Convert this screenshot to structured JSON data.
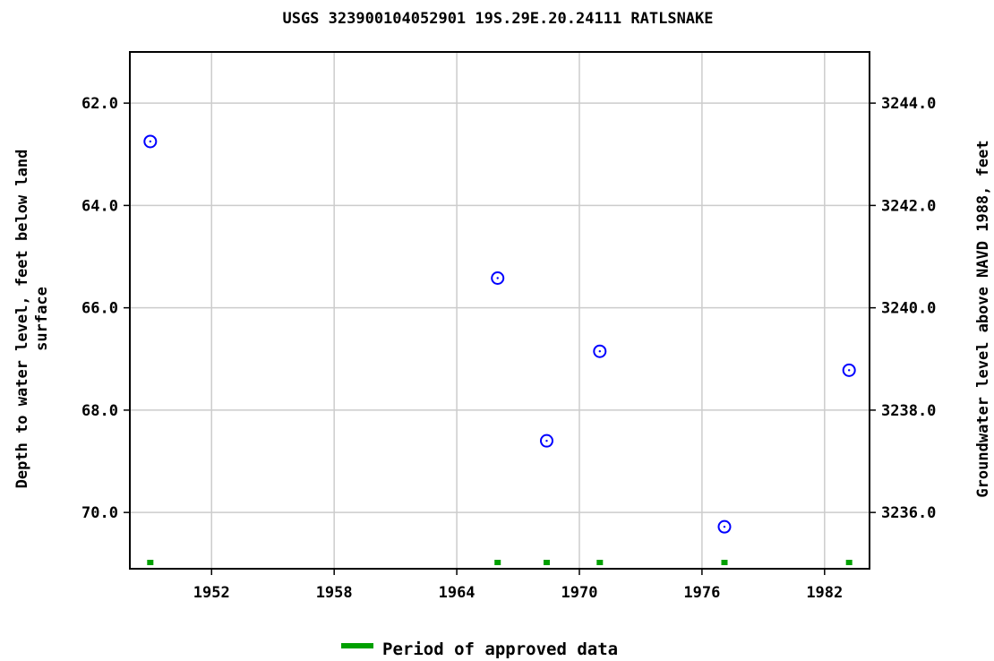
{
  "chart_data": {
    "type": "scatter",
    "title": "USGS 323900104052901 19S.29E.20.24111 RATLSNAKE",
    "ylabel_left": [
      "Depth to water level, feet below land",
      "surface"
    ],
    "ylabel_right": "Groundwater level above NAVD 1988, feet",
    "xlim": [
      1948.0,
      1984.2
    ],
    "ylim_left": [
      61.0,
      71.1
    ],
    "ylim_right": [
      3245.0,
      3234.9
    ],
    "y_inverted": true,
    "grid": true,
    "x_ticks": [
      "1952",
      "1958",
      "1964",
      "1970",
      "1976",
      "1982"
    ],
    "x_tick_values": [
      1952,
      1958,
      1964,
      1970,
      1976,
      1982
    ],
    "y_left_ticks": [
      "62.0",
      "64.0",
      "66.0",
      "68.0",
      "70.0"
    ],
    "y_left_tick_values": [
      62,
      64,
      66,
      68,
      70
    ],
    "y_right_ticks": [
      "3244.0",
      "3242.0",
      "3240.0",
      "3238.0",
      "3236.0"
    ],
    "y_right_tick_values": [
      3244,
      3242,
      3240,
      3238,
      3236
    ],
    "series": [
      {
        "marker": "circle",
        "color": "#0000ff",
        "x": [
          1949.0,
          1966.0,
          1968.4,
          1971.0,
          1977.1,
          1983.2
        ],
        "y": [
          62.75,
          65.42,
          68.6,
          66.85,
          70.28,
          67.22
        ]
      }
    ],
    "approved_periods": {
      "color": "#00a000",
      "x": [
        1949.0,
        1966.0,
        1968.4,
        1971.0,
        1977.1,
        1983.2
      ]
    },
    "legend": {
      "label": "Period of approved data",
      "color": "#00a000",
      "placement": "bottom-center"
    }
  }
}
